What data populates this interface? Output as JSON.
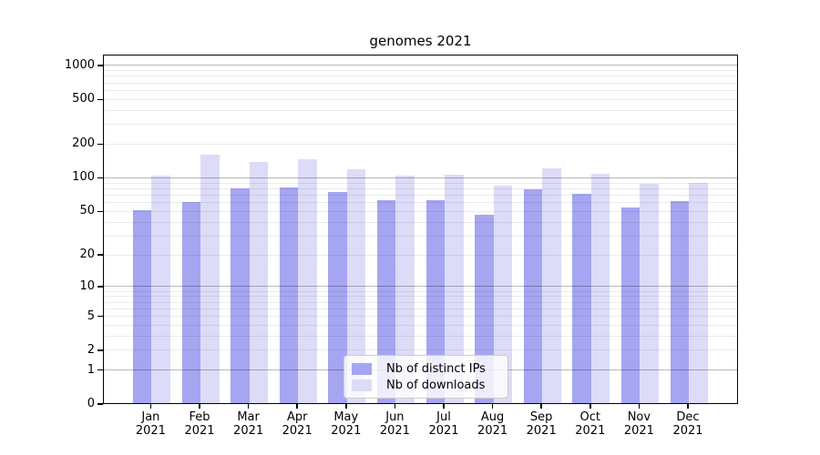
{
  "chart_data": {
    "type": "bar",
    "title": "genomes 2021",
    "categories": [
      "Jan",
      "Feb",
      "Mar",
      "Apr",
      "May",
      "Jun",
      "Jul",
      "Aug",
      "Sep",
      "Oct",
      "Nov",
      "Dec"
    ],
    "category_year": "2021",
    "series": [
      {
        "name": "Nb of distinct IPs",
        "color": "#a5a5f1",
        "values": [
          52,
          61,
          82,
          83,
          76,
          64,
          64,
          47,
          80,
          72,
          55,
          63
        ]
      },
      {
        "name": "Nb of downloads",
        "color": "#dcdcf8",
        "values": [
          106,
          164,
          141,
          149,
          120,
          106,
          107,
          86,
          122,
          109,
          89,
          91
        ]
      }
    ],
    "yscale": "symlog-log1p",
    "yticks": [
      0,
      1,
      2,
      5,
      10,
      20,
      50,
      100,
      200,
      500,
      1000
    ],
    "ylim": [
      0,
      1250
    ],
    "xlabel": "",
    "ylabel": "",
    "grid": "horizontal major and minor, drawn over bars",
    "grid_major_color": "rgba(0,0,0,0.28)",
    "grid_minor_color": "rgba(0,0,0,0.08)",
    "legend_position": "inside plot, lower center-right"
  }
}
